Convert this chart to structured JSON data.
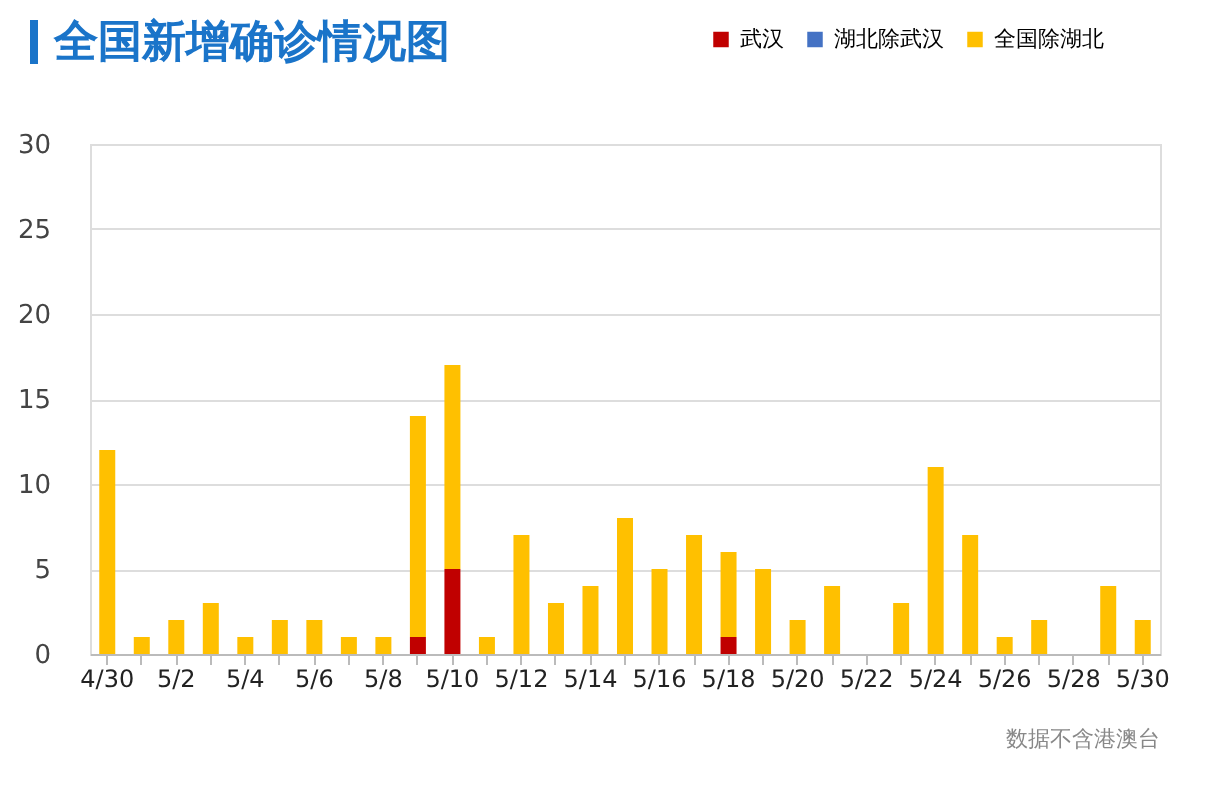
{
  "chart_data": {
    "type": "bar",
    "title": "全国新增确诊情况图",
    "stacked": true,
    "categories": [
      "4/30",
      null,
      "5/2",
      null,
      "5/4",
      null,
      "5/6",
      null,
      "5/8",
      null,
      "5/10",
      null,
      "5/12",
      null,
      "5/14",
      null,
      "5/16",
      null,
      "5/18",
      null,
      "5/20",
      null,
      "5/22",
      null,
      "5/24",
      null,
      "5/26",
      null,
      "5/28",
      null,
      "5/30"
    ],
    "series": [
      {
        "name": "武汉",
        "color": "#c00000",
        "values": [
          0,
          0,
          0,
          0,
          0,
          0,
          0,
          0,
          0,
          1,
          5,
          0,
          0,
          0,
          0,
          0,
          0,
          0,
          1,
          0,
          0,
          0,
          0,
          0,
          0,
          0,
          0,
          0,
          0,
          0,
          0
        ]
      },
      {
        "name": "湖北除武汉",
        "color": "#4472c4",
        "values": [
          0,
          0,
          0,
          0,
          0,
          0,
          0,
          0,
          0,
          0,
          0,
          0,
          0,
          0,
          0,
          0,
          0,
          0,
          0,
          0,
          0,
          0,
          0,
          0,
          0,
          0,
          0,
          0,
          0,
          0,
          0
        ]
      },
      {
        "name": "全国除湖北",
        "color": "#ffc000",
        "values": [
          12,
          1,
          2,
          3,
          1,
          2,
          2,
          1,
          1,
          13,
          12,
          1,
          7,
          3,
          4,
          8,
          5,
          7,
          5,
          5,
          2,
          4,
          0,
          3,
          11,
          7,
          1,
          2,
          0,
          4,
          2
        ]
      }
    ],
    "ylim": [
      0,
      30
    ],
    "yticks": [
      0,
      5,
      10,
      15,
      20,
      25,
      30
    ],
    "grid": "y",
    "legend": "top right",
    "annotations": [
      "数据不含港澳台"
    ]
  }
}
